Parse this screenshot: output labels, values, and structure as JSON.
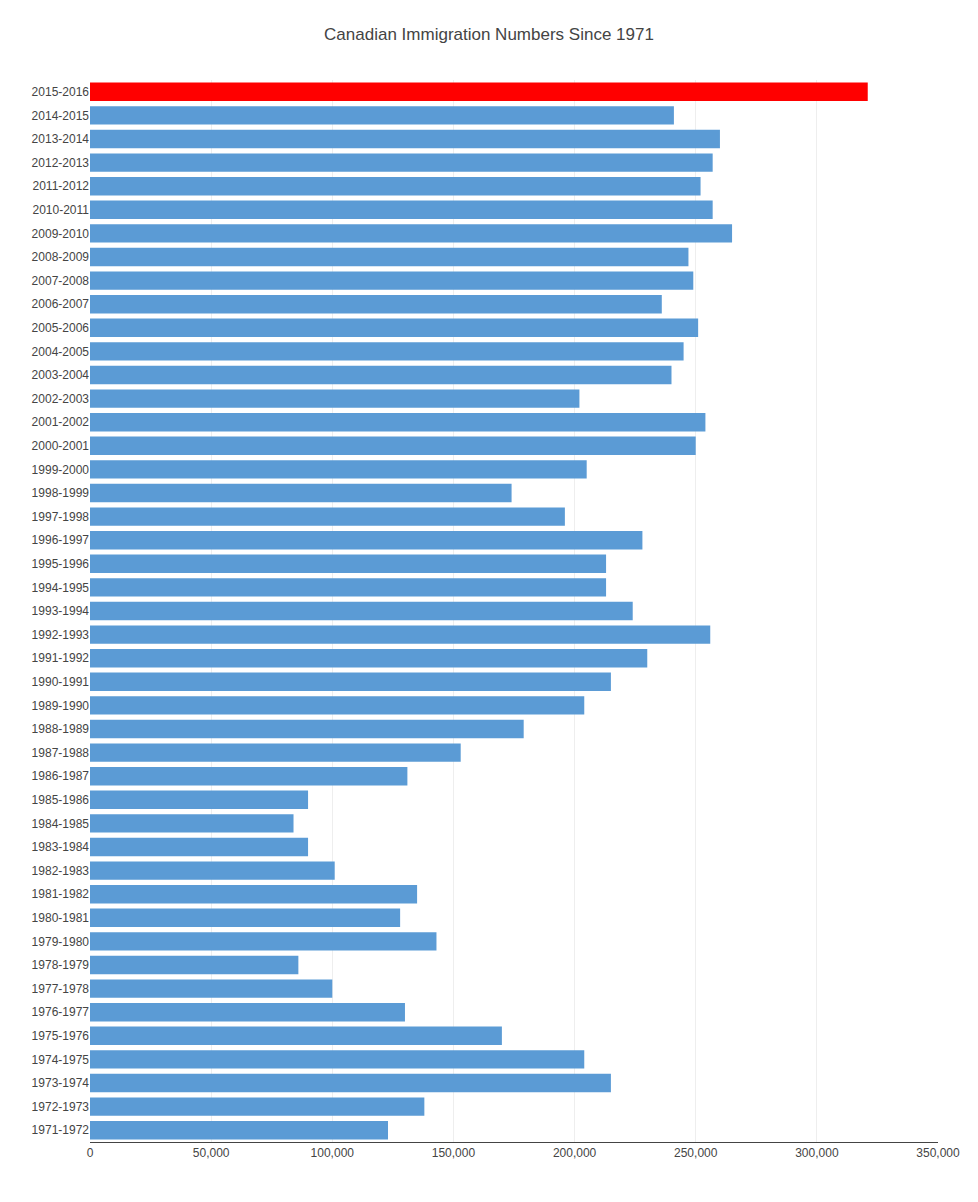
{
  "chart_data": {
    "type": "bar",
    "orientation": "horizontal",
    "title": "Canadian Immigration Numbers Since 1971",
    "categories": [
      "2015-2016",
      "2014-2015",
      "2013-2014",
      "2012-2013",
      "2011-2012",
      "2010-2011",
      "2009-2010",
      "2008-2009",
      "2007-2008",
      "2006-2007",
      "2005-2006",
      "2004-2005",
      "2003-2004",
      "2002-2003",
      "2001-2002",
      "2000-2001",
      "1999-2000",
      "1998-1999",
      "1997-1998",
      "1996-1997",
      "1995-1996",
      "1994-1995",
      "1993-1994",
      "1992-1993",
      "1991-1992",
      "1990-1991",
      "1989-1990",
      "1988-1989",
      "1987-1988",
      "1986-1987",
      "1985-1986",
      "1984-1985",
      "1983-1984",
      "1982-1983",
      "1981-1982",
      "1980-1981",
      "1979-1980",
      "1978-1979",
      "1977-1978",
      "1976-1977",
      "1975-1976",
      "1974-1975",
      "1973-1974",
      "1972-1973",
      "1971-1972"
    ],
    "values": [
      321000,
      241000,
      260000,
      257000,
      252000,
      257000,
      265000,
      247000,
      249000,
      236000,
      251000,
      245000,
      240000,
      202000,
      254000,
      250000,
      205000,
      174000,
      196000,
      228000,
      213000,
      213000,
      224000,
      256000,
      230000,
      215000,
      204000,
      179000,
      153000,
      131000,
      90000,
      84000,
      90000,
      101000,
      135000,
      128000,
      143000,
      86000,
      100000,
      130000,
      170000,
      204000,
      215000,
      138000,
      123000
    ],
    "colors": [
      "#FF0000",
      "#5B9BD5",
      "#5B9BD5",
      "#5B9BD5",
      "#5B9BD5",
      "#5B9BD5",
      "#5B9BD5",
      "#5B9BD5",
      "#5B9BD5",
      "#5B9BD5",
      "#5B9BD5",
      "#5B9BD5",
      "#5B9BD5",
      "#5B9BD5",
      "#5B9BD5",
      "#5B9BD5",
      "#5B9BD5",
      "#5B9BD5",
      "#5B9BD5",
      "#5B9BD5",
      "#5B9BD5",
      "#5B9BD5",
      "#5B9BD5",
      "#5B9BD5",
      "#5B9BD5",
      "#5B9BD5",
      "#5B9BD5",
      "#5B9BD5",
      "#5B9BD5",
      "#5B9BD5",
      "#5B9BD5",
      "#5B9BD5",
      "#5B9BD5",
      "#5B9BD5",
      "#5B9BD5",
      "#5B9BD5",
      "#5B9BD5",
      "#5B9BD5",
      "#5B9BD5",
      "#5B9BD5",
      "#5B9BD5",
      "#5B9BD5",
      "#5B9BD5",
      "#5B9BD5",
      "#5B9BD5"
    ],
    "xlim": [
      0,
      350000
    ],
    "xticks": [
      0,
      {
        "value": 50000,
        "label": "50,000"
      },
      {
        "value": 100000,
        "label": "100,000"
      },
      {
        "value": 150000,
        "label": "150,000"
      },
      {
        "value": 200000,
        "label": "200,000"
      },
      {
        "value": 250000,
        "label": "250,000"
      },
      {
        "value": 300000,
        "label": "300,000"
      },
      {
        "value": 350000,
        "label": "350,000"
      }
    ],
    "grid": true
  }
}
